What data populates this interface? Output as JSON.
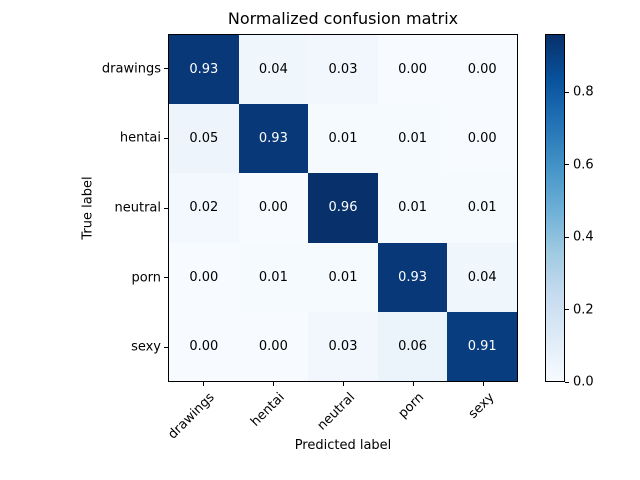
{
  "figure": {
    "title": "Normalized confusion matrix",
    "xlabel": "Predicted label",
    "ylabel": "True label",
    "background_color": "#ffffff",
    "spine_color": "#000000"
  },
  "chart_data": {
    "type": "heatmap",
    "title": "Normalized confusion matrix",
    "xlabel": "Predicted label",
    "ylabel": "True label",
    "categories": [
      "drawings",
      "hentai",
      "neutral",
      "porn",
      "sexy"
    ],
    "x_tick_labels": [
      "drawings",
      "hentai",
      "neutral",
      "porn",
      "sexy"
    ],
    "y_tick_labels": [
      "drawings",
      "hentai",
      "neutral",
      "porn",
      "sexy"
    ],
    "matrix": [
      [
        0.93,
        0.04,
        0.03,
        0.0,
        0.0
      ],
      [
        0.05,
        0.93,
        0.01,
        0.01,
        0.0
      ],
      [
        0.02,
        0.0,
        0.96,
        0.01,
        0.01
      ],
      [
        0.0,
        0.01,
        0.01,
        0.93,
        0.04
      ],
      [
        0.0,
        0.0,
        0.03,
        0.06,
        0.91
      ]
    ],
    "value_decimals": 2,
    "vmin": 0.0,
    "vmax": 0.96,
    "colormap": {
      "name": "Blues",
      "stops": [
        "#f7fbff",
        "#deebf7",
        "#c6dbef",
        "#9ecae1",
        "#6baed6",
        "#4292c6",
        "#2171b5",
        "#08519c",
        "#08306b"
      ]
    },
    "cell_text_color_light_bg": "#000000",
    "cell_text_color_dark_bg": "#ffffff",
    "colorbar": {
      "tick_labels": [
        "0.0",
        "0.2",
        "0.4",
        "0.6",
        "0.8"
      ],
      "tick_values": [
        0.0,
        0.2,
        0.4,
        0.6,
        0.8
      ],
      "orientation": "vertical",
      "position": "right"
    },
    "x_tick_rotation_deg": 45,
    "grid": false,
    "legend": false
  }
}
